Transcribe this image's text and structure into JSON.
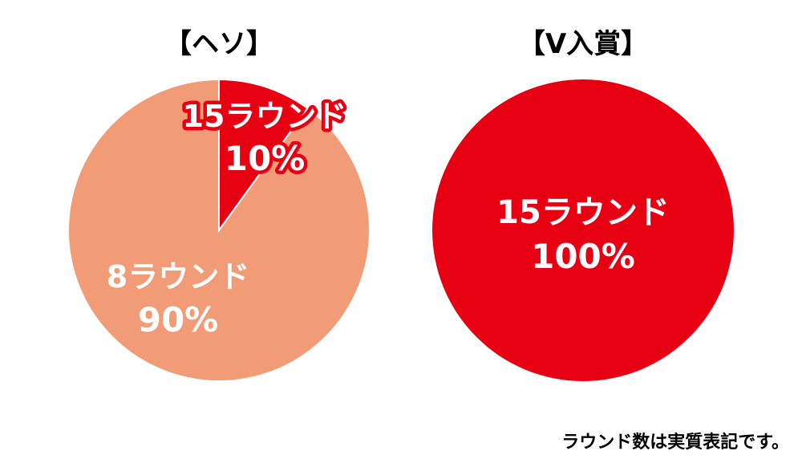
{
  "chart_data": [
    {
      "type": "pie",
      "title": "【ヘソ】",
      "slices": [
        {
          "label": "15ラウンド",
          "percent_label": "10%",
          "value": 10,
          "color": "#e60012"
        },
        {
          "label": "8ラウンド",
          "percent_label": "90%",
          "value": 90,
          "color": "#f19b77"
        }
      ]
    },
    {
      "type": "pie",
      "title": "【V入賞】",
      "slices": [
        {
          "label": "15ラウンド",
          "percent_label": "100%",
          "value": 100,
          "color": "#e60012"
        }
      ]
    }
  ],
  "footnote": "ラウンド数は実質表記です。"
}
